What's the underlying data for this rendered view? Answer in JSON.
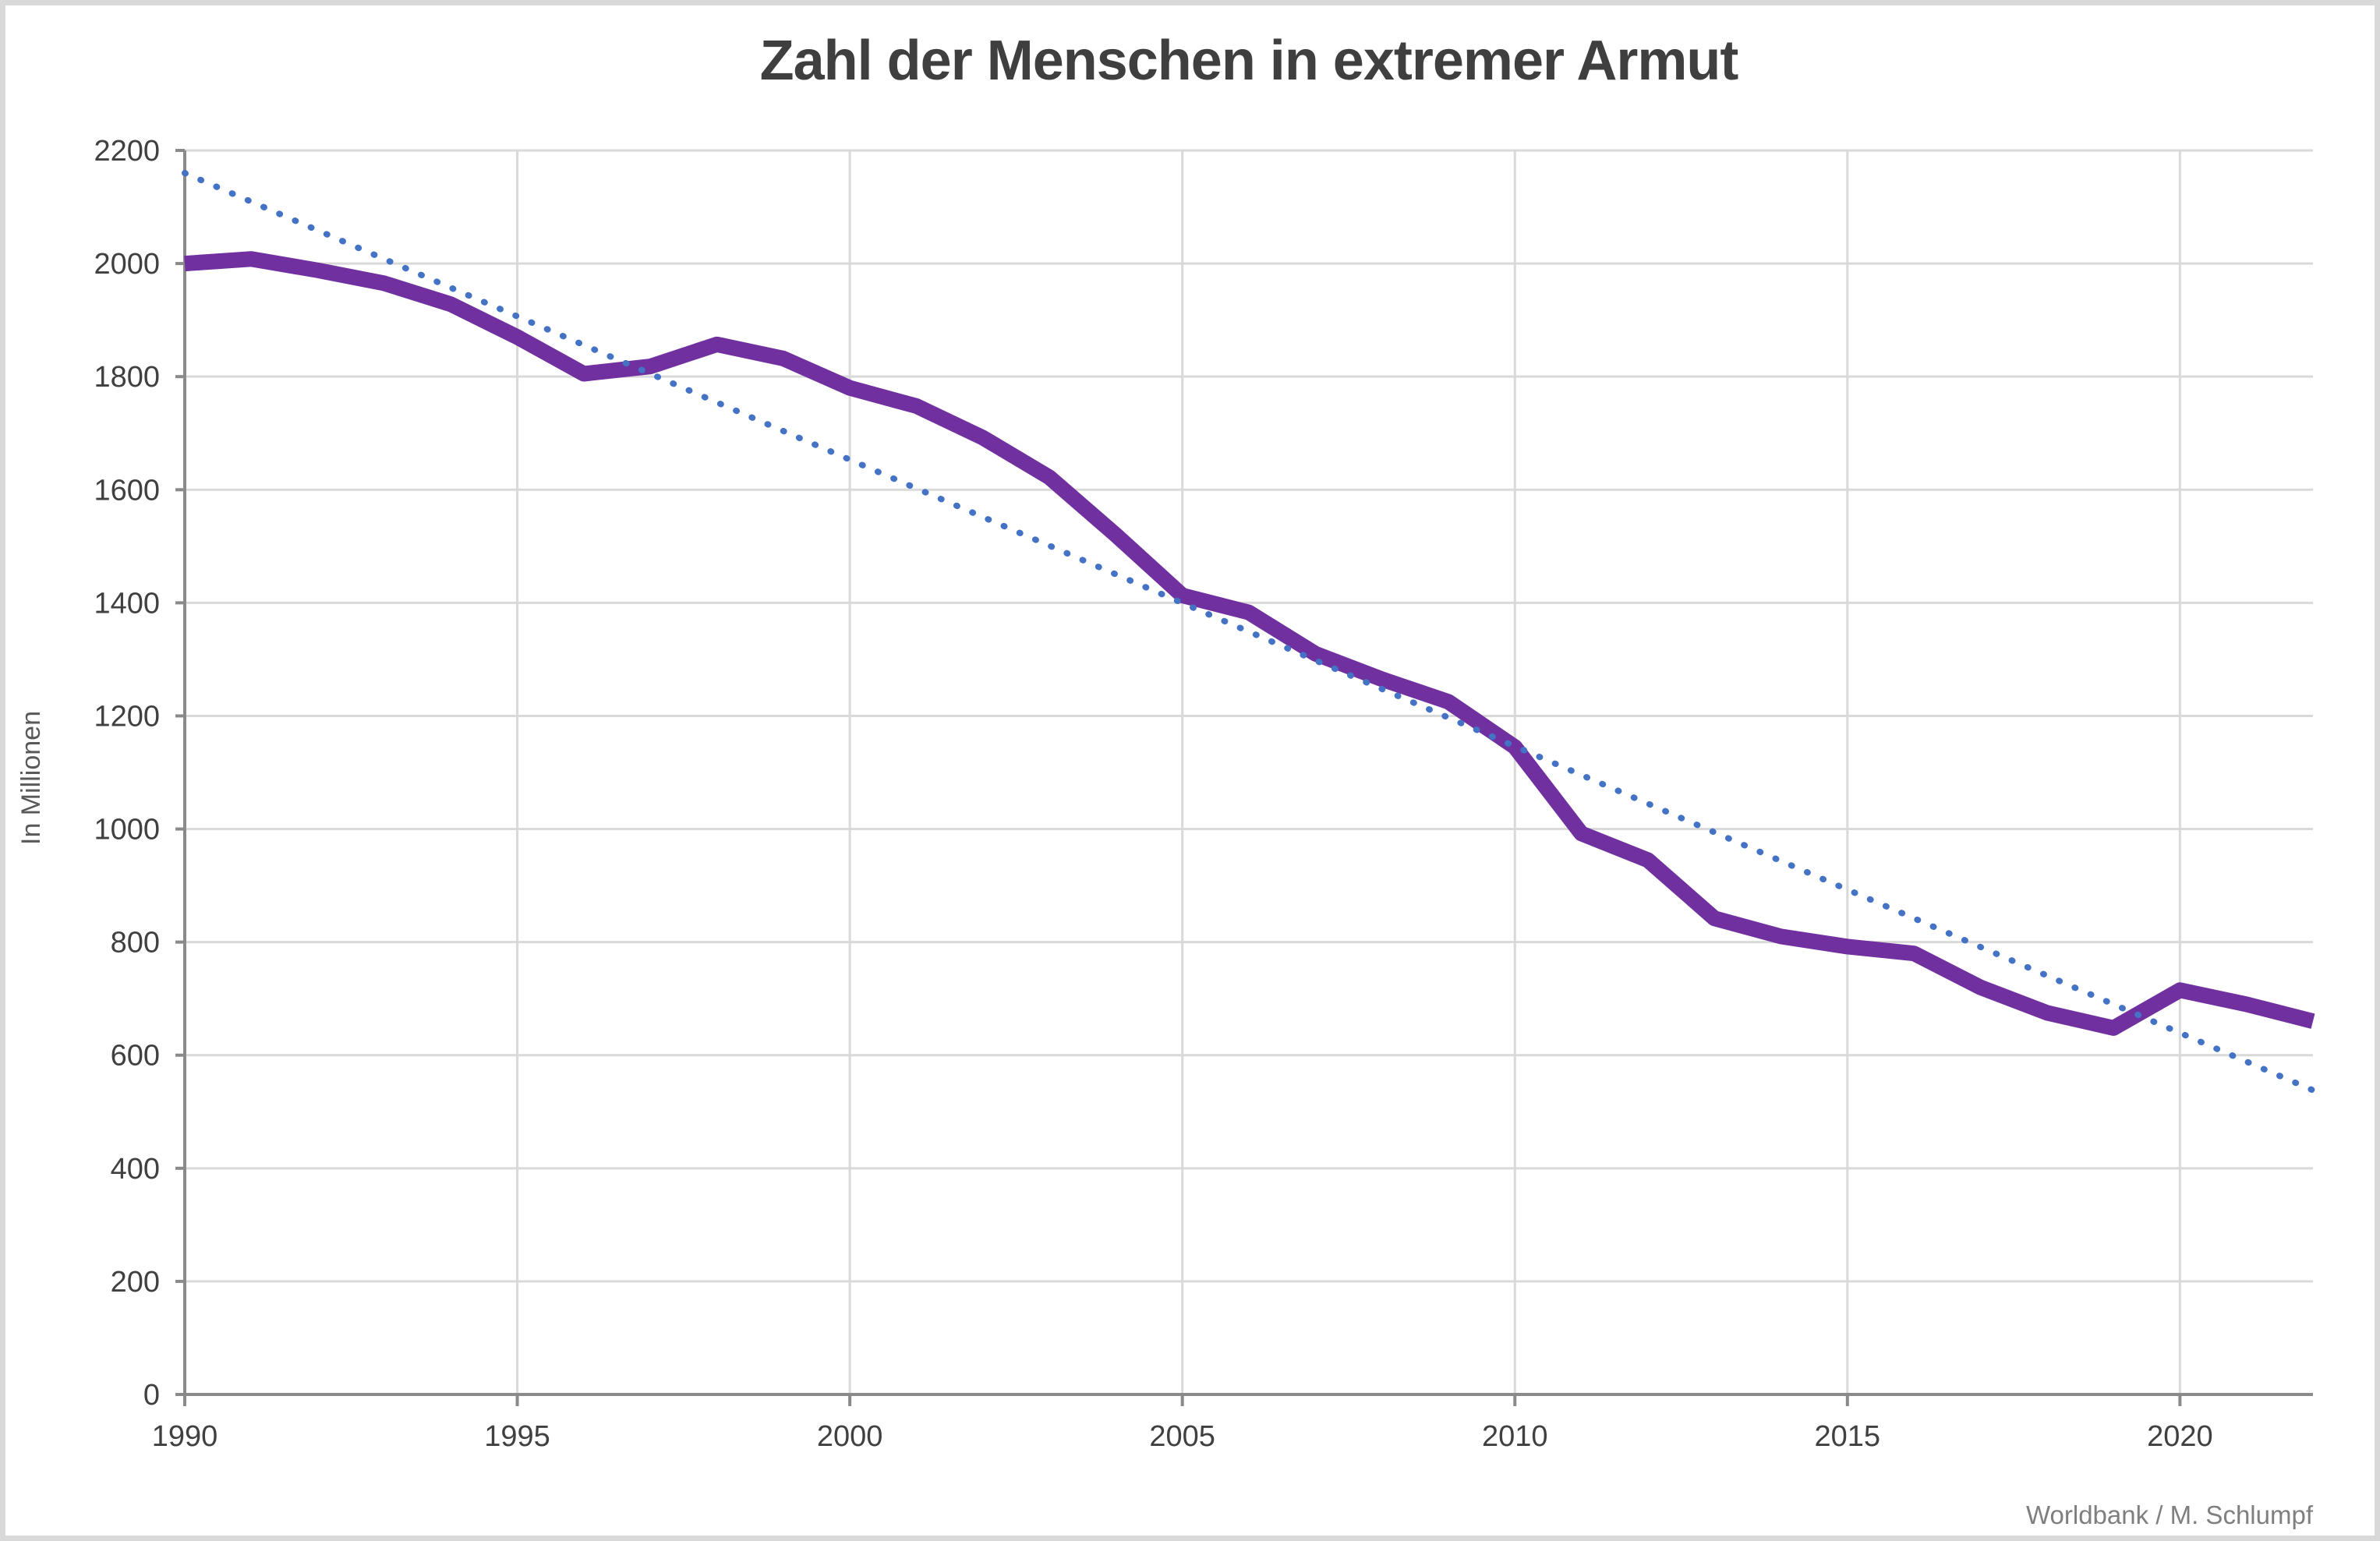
{
  "chart_data": {
    "type": "line",
    "title": "Zahl der Menschen in extremer Armut",
    "ylabel": "In Millionen",
    "source": "Worldbank / M. Schlumpf",
    "xlim": [
      1990,
      2022
    ],
    "ylim": [
      0,
      2200
    ],
    "y_tick_step": 200,
    "x_ticks": [
      1990,
      1995,
      2000,
      2005,
      2010,
      2015,
      2020
    ],
    "grid": true,
    "legend": "none",
    "x": [
      1990,
      1991,
      1992,
      1993,
      1994,
      1995,
      1996,
      1997,
      1998,
      1999,
      2000,
      2001,
      2002,
      2003,
      2004,
      2005,
      2006,
      2007,
      2008,
      2009,
      2010,
      2011,
      2012,
      2013,
      2014,
      2015,
      2016,
      2017,
      2018,
      2019,
      2020,
      2021,
      2022
    ],
    "series": [
      {
        "name": "Menschen in extremer Armut",
        "type": "line",
        "color": "#7030A0",
        "values": [
          2000,
          2008,
          1988,
          1965,
          1928,
          1870,
          1805,
          1818,
          1857,
          1832,
          1780,
          1748,
          1692,
          1622,
          1520,
          1413,
          1383,
          1310,
          1265,
          1225,
          1145,
          992,
          945,
          842,
          810,
          792,
          780,
          720,
          675,
          648,
          715,
          690,
          660
        ]
      },
      {
        "name": "Trend (linear)",
        "type": "trend",
        "style": "dotted",
        "color": "#4472C4",
        "x": [
          1990,
          2022
        ],
        "values": [
          2160,
          538
        ]
      }
    ]
  },
  "colors": {
    "background": "#FFFFFF",
    "frame_border": "#D9D9D9",
    "gridline": "#D9D9D9",
    "axis": "#8A8A8A",
    "title_text": "#3F3F3F",
    "tick_text": "#404040",
    "ylabel_text": "#595959",
    "source_text": "#7F7F7F"
  }
}
